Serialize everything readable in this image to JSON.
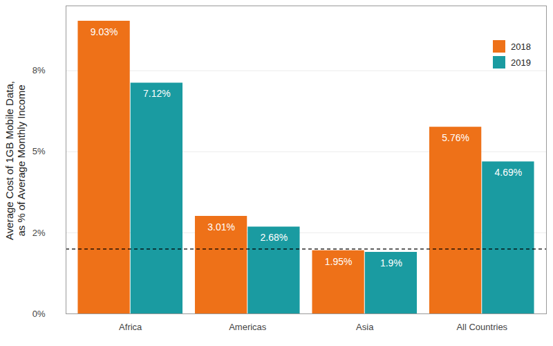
{
  "chart_data": {
    "type": "bar",
    "y_label": "Average Cost of 1GB Mobile Data,\nas % of Average Monthly Income",
    "categories": [
      "Africa",
      "Americas",
      "Asia",
      "All Countries"
    ],
    "series": [
      {
        "name": "2018",
        "color": "#EE7118",
        "values": [
          9.03,
          3.01,
          1.95,
          5.76
        ],
        "value_labels": [
          "9.03%",
          "3.01%",
          "1.95%",
          "5.76%"
        ]
      },
      {
        "name": "2019",
        "color": "#1A9BA1",
        "values": [
          7.12,
          2.68,
          1.9,
          4.69
        ],
        "value_labels": [
          "7.12%",
          "2.68%",
          "1.9%",
          "4.69%"
        ]
      }
    ],
    "ylim": [
      0,
      9.5
    ],
    "yticks": [
      {
        "value": 0,
        "label": "0%"
      },
      {
        "value": 2.5,
        "label": "2%"
      },
      {
        "value": 5,
        "label": "5%"
      },
      {
        "value": 7.5,
        "label": "8%"
      }
    ],
    "grid": true,
    "legend": "top-right",
    "data_labels": true,
    "reference_line": {
      "value": 2,
      "line_style": "dashed"
    }
  }
}
